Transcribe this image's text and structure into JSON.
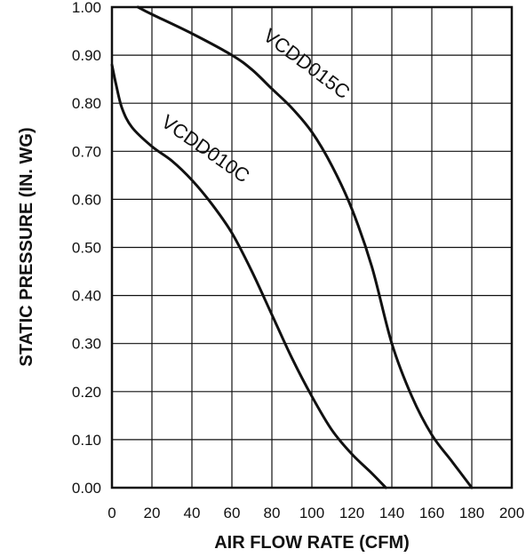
{
  "chart_data": {
    "type": "line",
    "title": "",
    "xlabel": "AIR FLOW RATE (CFM)",
    "ylabel": "STATIC PRESSURE (IN. WG)",
    "xlim": [
      0,
      200
    ],
    "ylim": [
      0,
      1.0
    ],
    "x_ticks": [
      "0",
      "20",
      "40",
      "60",
      "80",
      "100",
      "120",
      "140",
      "160",
      "180",
      "200"
    ],
    "y_ticks": [
      "0.00",
      "0.10",
      "0.20",
      "0.30",
      "0.40",
      "0.50",
      "0.60",
      "0.70",
      "0.80",
      "0.90",
      "1.00"
    ],
    "grid": true,
    "series": [
      {
        "name": "VCDD010C",
        "points": [
          [
            0,
            0.88
          ],
          [
            2,
            0.84
          ],
          [
            5,
            0.79
          ],
          [
            10,
            0.75
          ],
          [
            20,
            0.71
          ],
          [
            30,
            0.68
          ],
          [
            40,
            0.64
          ],
          [
            50,
            0.59
          ],
          [
            60,
            0.53
          ],
          [
            70,
            0.45
          ],
          [
            80,
            0.36
          ],
          [
            90,
            0.27
          ],
          [
            100,
            0.19
          ],
          [
            110,
            0.12
          ],
          [
            120,
            0.07
          ],
          [
            130,
            0.03
          ],
          [
            137,
            0.0
          ]
        ]
      },
      {
        "name": "VCDD015C",
        "points": [
          [
            13,
            1.0
          ],
          [
            20,
            0.985
          ],
          [
            40,
            0.945
          ],
          [
            60,
            0.9
          ],
          [
            70,
            0.87
          ],
          [
            80,
            0.83
          ],
          [
            90,
            0.79
          ],
          [
            100,
            0.74
          ],
          [
            110,
            0.67
          ],
          [
            120,
            0.58
          ],
          [
            130,
            0.46
          ],
          [
            140,
            0.3
          ],
          [
            150,
            0.19
          ],
          [
            160,
            0.11
          ],
          [
            170,
            0.055
          ],
          [
            180,
            0.0
          ]
        ]
      }
    ]
  }
}
